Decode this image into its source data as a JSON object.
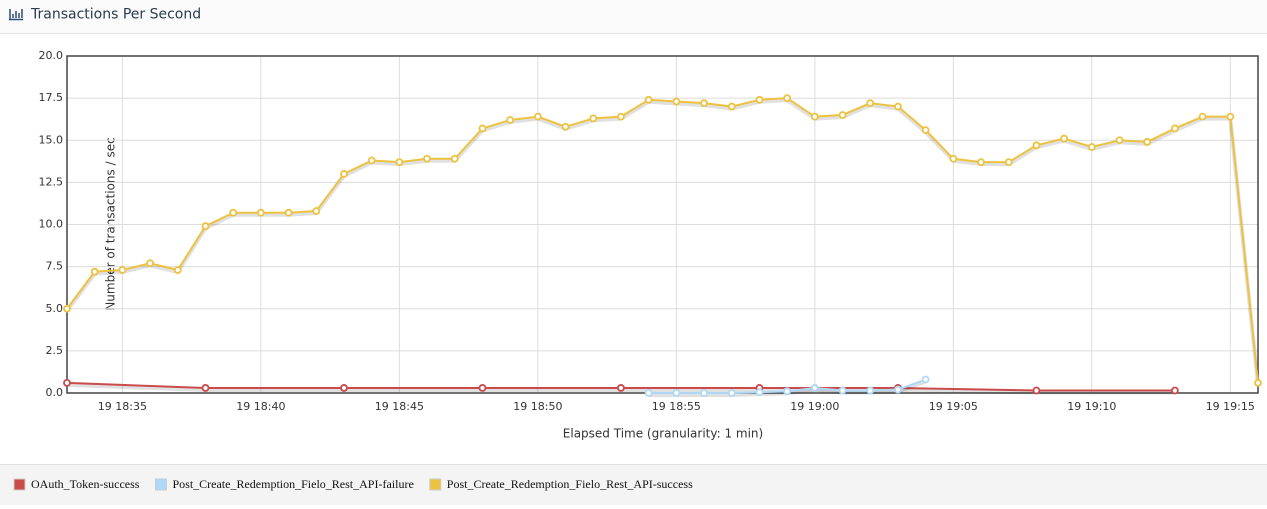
{
  "header": {
    "title": "Transactions Per Second"
  },
  "chart_data": {
    "type": "line",
    "y_label": "Number of transactions / sec",
    "x_label": "Elapsed Time (granularity: 1 min)",
    "xlim": [
      "19 18:33",
      "19 19:16"
    ],
    "xticks": [
      "19 18:35",
      "19 18:40",
      "19 18:45",
      "19 18:50",
      "19 18:55",
      "19 19:00",
      "19 19:05",
      "19 19:10",
      "19 19:15"
    ],
    "ylim": [
      0,
      20
    ],
    "yticks": [
      {
        "value": 0,
        "label": "0.0"
      },
      2.5,
      {
        "value": 5,
        "label": "5.0"
      },
      7.5,
      {
        "value": 10,
        "label": "10.0"
      },
      12.5,
      {
        "value": 15,
        "label": "15.0"
      },
      17.5,
      {
        "value": 20,
        "label": "20.0"
      }
    ],
    "grid": true,
    "legend": "bottom",
    "series": [
      {
        "name": "OAuth_Token-success",
        "color": "#cb4b4b",
        "x": [
          "19 18:33",
          "19 18:38",
          "19 18:43",
          "19 18:48",
          "19 18:53",
          "19 18:58",
          "19 19:03",
          "19 19:08",
          "19 19:13"
        ],
        "values": [
          0.6,
          0.3,
          0.3,
          0.3,
          0.3,
          0.3,
          0.3,
          0.15,
          0.15
        ]
      },
      {
        "name": "Post_Create_Redemption_Fielo_Rest_API-failure",
        "color": "#afd8f8",
        "x": [
          "19 18:54",
          "19 18:55",
          "19 18:56",
          "19 18:57",
          "19 18:58",
          "19 18:59",
          "19 19:00",
          "19 19:01",
          "19 19:02",
          "19 19:03",
          "19 19:04"
        ],
        "values": [
          0,
          0,
          0,
          0,
          0.05,
          0.1,
          0.3,
          0.15,
          0.15,
          0.2,
          0.8
        ]
      },
      {
        "name": "Post_Create_Redemption_Fielo_Rest_API-success",
        "color": "#edc240",
        "x": [
          "19 18:33",
          "19 18:34",
          "19 18:35",
          "19 18:36",
          "19 18:37",
          "19 18:38",
          "19 18:39",
          "19 18:40",
          "19 18:41",
          "19 18:42",
          "19 18:43",
          "19 18:44",
          "19 18:45",
          "19 18:46",
          "19 18:47",
          "19 18:48",
          "19 18:49",
          "19 18:50",
          "19 18:51",
          "19 18:52",
          "19 18:53",
          "19 18:54",
          "19 18:55",
          "19 18:56",
          "19 18:57",
          "19 18:58",
          "19 18:59",
          "19 19:00",
          "19 19:01",
          "19 19:02",
          "19 19:03",
          "19 19:04",
          "19 19:05",
          "19 19:06",
          "19 19:07",
          "19 19:08",
          "19 19:09",
          "19 19:10",
          "19 19:11",
          "19 19:12",
          "19 19:13",
          "19 19:14",
          "19 19:15",
          "19 19:16"
        ],
        "values": [
          5.0,
          7.2,
          7.3,
          7.7,
          7.3,
          9.9,
          10.7,
          10.7,
          10.7,
          10.8,
          13.0,
          13.8,
          13.7,
          13.9,
          13.9,
          15.7,
          16.2,
          16.4,
          15.8,
          16.3,
          16.4,
          17.4,
          17.3,
          17.2,
          17.0,
          17.4,
          17.5,
          16.4,
          16.5,
          17.2,
          17.0,
          15.6,
          13.9,
          13.7,
          13.7,
          14.7,
          15.1,
          14.6,
          15.0,
          14.9,
          15.7,
          16.4,
          16.4,
          0.6
        ]
      }
    ]
  }
}
